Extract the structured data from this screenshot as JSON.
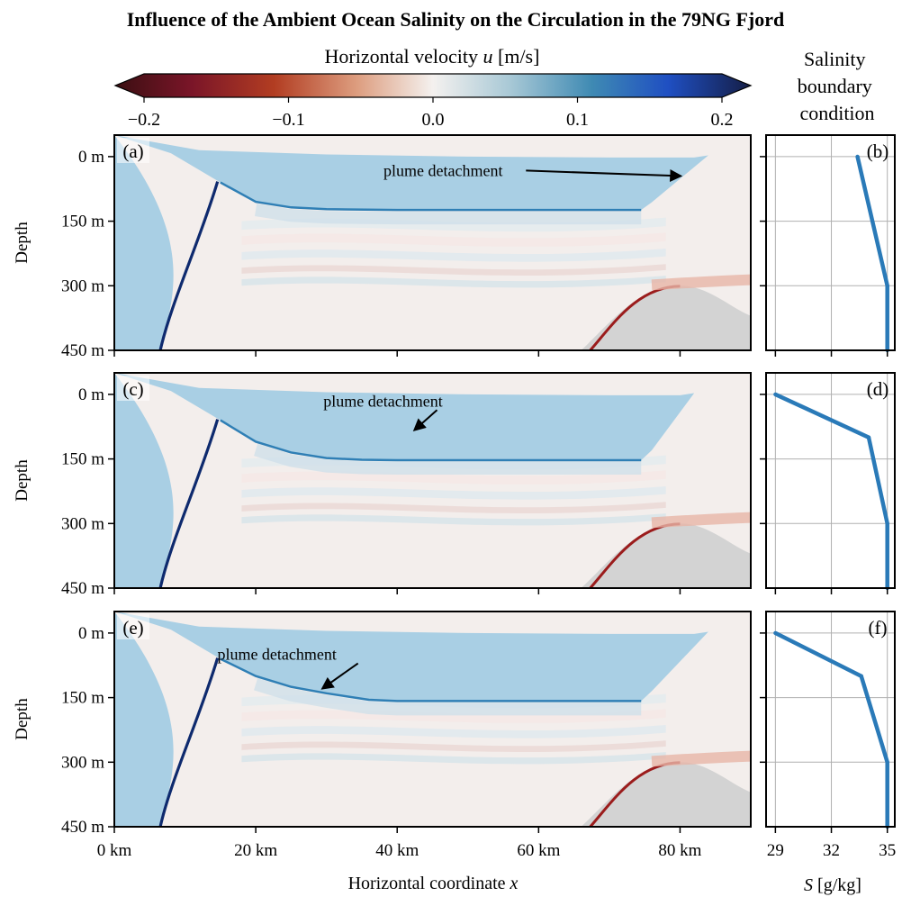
{
  "title": "Influence of the Ambient Ocean Salinity on the Circulation in the 79NG Fjord",
  "colorbar": {
    "label_prefix": "Horizontal velocity ",
    "label_var": "u",
    "label_suffix": " [m/s]",
    "ticks": [
      "−0.2",
      "−0.1",
      "0.0",
      "0.1",
      "0.2"
    ],
    "tick_values": [
      -0.2,
      -0.1,
      0.0,
      0.1,
      0.2
    ],
    "range": [
      -0.2,
      0.2
    ]
  },
  "salinity_header": [
    "Salinity",
    "boundary",
    "condition"
  ],
  "xlabel_prefix": "Horizontal coordinate ",
  "xlabel_var": "x",
  "ylabel": "Depth",
  "s_xlabel_var": "S",
  "s_xlabel_suffix": " [g/kg]",
  "annotation": "plume detachment",
  "colors": {
    "ice": "#a9cfe4",
    "bedrock": "#d3d3d3",
    "profile": "#2a7ab8"
  },
  "chart_data": [
    {
      "type": "heatmap",
      "panel": "(a)",
      "xlabel": "Horizontal coordinate x",
      "ylabel": "Depth",
      "x_ticks": [
        "0 km",
        "20 km",
        "40 km",
        "60 km",
        "80 km"
      ],
      "x_tick_values": [
        0,
        20,
        40,
        60,
        80
      ],
      "y_ticks": [
        "0 m",
        "150 m",
        "300 m",
        "450 m"
      ],
      "y_tick_values": [
        0,
        150,
        300,
        450
      ],
      "xlim": [
        0,
        90
      ],
      "ylim": [
        450,
        -50
      ],
      "ice_base": [
        [
          0,
          -50
        ],
        [
          8,
          -8
        ],
        [
          15,
          60
        ],
        [
          20,
          105
        ],
        [
          25,
          118
        ],
        [
          30,
          122
        ],
        [
          40,
          124
        ],
        [
          60,
          124
        ],
        [
          74.5,
          124
        ],
        [
          76,
          106
        ],
        [
          84,
          -3
        ]
      ],
      "ice_top": [
        [
          0,
          -50
        ],
        [
          12,
          -15
        ],
        [
          30,
          -5
        ],
        [
          50,
          0
        ],
        [
          70,
          2
        ],
        [
          82,
          2
        ],
        [
          84,
          -3
        ]
      ],
      "ice_front_x": 84,
      "detachment_depth": 78,
      "annotation": {
        "text": "plume detachment",
        "text_at": [
          46.5,
          45
        ],
        "arrow_to": [
          80,
          45
        ]
      }
    },
    {
      "type": "line",
      "panel": "(b)",
      "xlabel": "S [g/kg]",
      "x_ticks": [
        "29",
        "32",
        "35"
      ],
      "x_tick_values": [
        29,
        32,
        35
      ],
      "xlim": [
        28.5,
        35.4
      ],
      "ylim": [
        450,
        -50
      ],
      "depth": [
        0,
        300,
        450
      ],
      "salinity": [
        33.4,
        35,
        35
      ]
    },
    {
      "type": "heatmap",
      "panel": "(c)",
      "xlabel": "Horizontal coordinate x",
      "ylabel": "Depth",
      "x_ticks": [
        "0 km",
        "20 km",
        "40 km",
        "60 km",
        "80 km"
      ],
      "x_tick_values": [
        0,
        20,
        40,
        60,
        80
      ],
      "y_ticks": [
        "0 m",
        "150 m",
        "300 m",
        "450 m"
      ],
      "y_tick_values": [
        0,
        150,
        300,
        450
      ],
      "xlim": [
        0,
        90
      ],
      "ylim": [
        450,
        -50
      ],
      "ice_base": [
        [
          0,
          -50
        ],
        [
          8,
          -8
        ],
        [
          15,
          60
        ],
        [
          20,
          110
        ],
        [
          25,
          135
        ],
        [
          30,
          148
        ],
        [
          35,
          152
        ],
        [
          40,
          153
        ],
        [
          60,
          153
        ],
        [
          74.5,
          153
        ],
        [
          76,
          130
        ],
        [
          82,
          -3
        ]
      ],
      "ice_top": [
        [
          0,
          -50
        ],
        [
          12,
          -15
        ],
        [
          30,
          -5
        ],
        [
          50,
          0
        ],
        [
          70,
          2
        ],
        [
          80,
          2
        ],
        [
          82,
          -3
        ]
      ],
      "ice_front_x": 82,
      "detachment_depth": 100,
      "annotation": {
        "text": "plume detachment",
        "text_at": [
          38,
          28
        ],
        "arrow_to": [
          42.5,
          82
        ]
      }
    },
    {
      "type": "line",
      "panel": "(d)",
      "xlabel": "S [g/kg]",
      "x_ticks": [
        "29",
        "32",
        "35"
      ],
      "x_tick_values": [
        29,
        32,
        35
      ],
      "xlim": [
        28.5,
        35.4
      ],
      "ylim": [
        450,
        -50
      ],
      "depth": [
        0,
        100,
        300,
        450
      ],
      "salinity": [
        29,
        34,
        35,
        35
      ]
    },
    {
      "type": "heatmap",
      "panel": "(e)",
      "xlabel": "Horizontal coordinate x",
      "ylabel": "Depth",
      "x_ticks": [
        "0 km",
        "20 km",
        "40 km",
        "60 km",
        "80 km"
      ],
      "x_tick_values": [
        0,
        20,
        40,
        60,
        80
      ],
      "y_ticks": [
        "0 m",
        "150 m",
        "300 m",
        "450 m"
      ],
      "y_tick_values": [
        0,
        150,
        300,
        450
      ],
      "xlim": [
        0,
        90
      ],
      "ylim": [
        450,
        -50
      ],
      "ice_base": [
        [
          0,
          -50
        ],
        [
          8,
          -8
        ],
        [
          15,
          60
        ],
        [
          20,
          100
        ],
        [
          25,
          125
        ],
        [
          30,
          140
        ],
        [
          36,
          155
        ],
        [
          40,
          158
        ],
        [
          60,
          158
        ],
        [
          74.5,
          158
        ],
        [
          76,
          135
        ],
        [
          84,
          -3
        ]
      ],
      "ice_top": [
        [
          0,
          -50
        ],
        [
          12,
          -15
        ],
        [
          30,
          -5
        ],
        [
          50,
          0
        ],
        [
          70,
          2
        ],
        [
          82,
          2
        ],
        [
          84,
          -3
        ]
      ],
      "ice_front_x": 84,
      "detachment_depth": 130,
      "annotation": {
        "text": "plume detachment",
        "text_at": [
          23,
          62
        ],
        "arrow_to": [
          29.5,
          128
        ]
      }
    },
    {
      "type": "line",
      "panel": "(f)",
      "xlabel": "S [g/kg]",
      "x_ticks": [
        "29",
        "32",
        "35"
      ],
      "x_tick_values": [
        29,
        32,
        35
      ],
      "xlim": [
        28.5,
        35.4
      ],
      "ylim": [
        450,
        -50
      ],
      "depth": [
        0,
        100,
        300,
        450
      ],
      "salinity": [
        29,
        33.6,
        35,
        35
      ]
    }
  ]
}
